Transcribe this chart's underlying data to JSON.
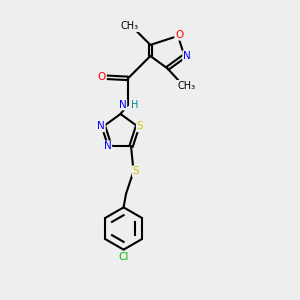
{
  "bg_color": "#eeeeee",
  "atom_colors": {
    "C": "#000000",
    "N": "#0000ff",
    "O": "#ff0000",
    "S": "#cccc00",
    "Cl": "#00bb00",
    "H": "#008888"
  },
  "bond_color": "#000000",
  "bond_width": 1.5,
  "dbo": 0.07,
  "figsize": [
    3.0,
    3.0
  ],
  "dpi": 100
}
